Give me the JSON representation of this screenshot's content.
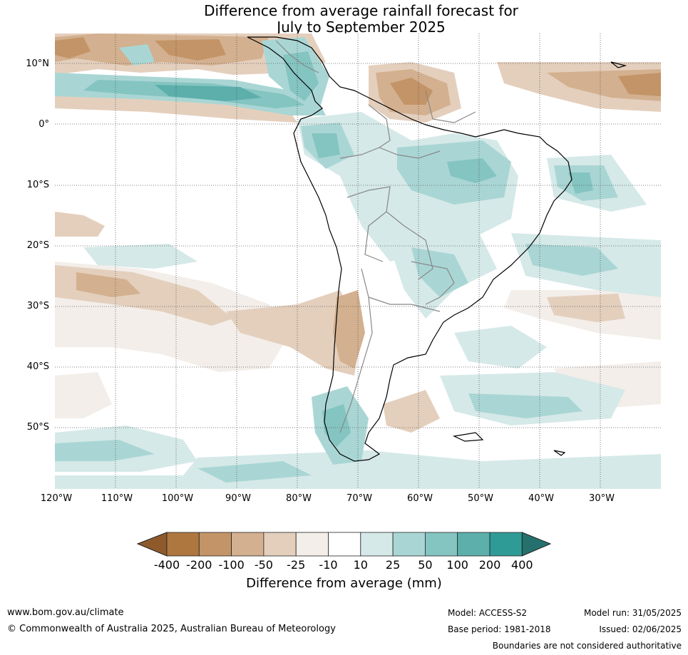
{
  "title": {
    "line1": "Difference from average rainfall forecast for",
    "line2": "July to September 2025"
  },
  "map": {
    "lat_labels": [
      "10°N",
      "0°",
      "10°S",
      "20°S",
      "30°S",
      "40°S",
      "50°S"
    ],
    "lon_labels": [
      "120°W",
      "110°W",
      "100°W",
      "90°W",
      "80°W",
      "70°W",
      "60°W",
      "50°W",
      "40°W",
      "30°W"
    ]
  },
  "legend": {
    "ticks": [
      "-400",
      "-200",
      "-100",
      "-50",
      "-25",
      "-10",
      "10",
      "25",
      "50",
      "100",
      "200",
      "400"
    ],
    "colors": [
      "#8f5a2b",
      "#ad773f",
      "#c39467",
      "#d3b08f",
      "#e4cfbd",
      "#f3eee9",
      "#ffffff",
      "#d5e9e8",
      "#a9d6d4",
      "#84c4c1",
      "#5cafab",
      "#2f9b96",
      "#25706c"
    ],
    "label": "Difference from average (mm)"
  },
  "footer": {
    "url": "www.bom.gov.au/climate",
    "copyright": "© Commonwealth of Australia 2025, Australian Bureau of Meteorology",
    "model": "Model: ACCESS-S2",
    "base_period": "Base period: 1981-2018",
    "model_run": "Model run: 31/05/2025",
    "issued": "Issued: 02/06/2025",
    "disclaimer": "Boundaries are not considered authoritative"
  }
}
